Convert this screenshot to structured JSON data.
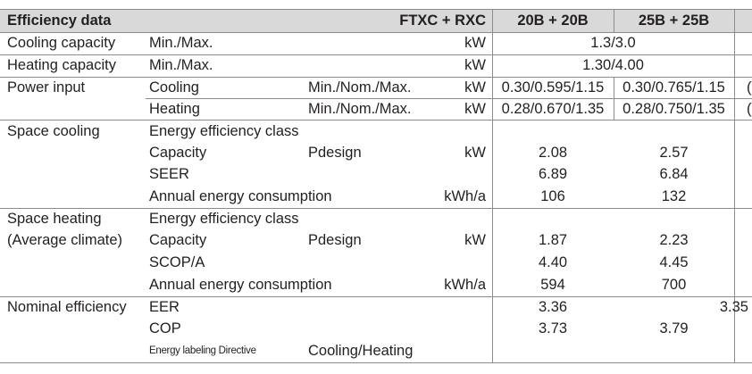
{
  "header": {
    "title": "Efficiency data",
    "model_label": "FTXC + RXC",
    "columns": [
      "20B + 20B",
      "25B + 25B"
    ]
  },
  "rows": {
    "cooling_capacity": {
      "label": "Cooling capacity",
      "param": "Min./Max.",
      "unit": "kW",
      "value_span": "1.3/3.0"
    },
    "heating_capacity": {
      "label": "Heating capacity",
      "param": "Min./Max.",
      "unit": "kW",
      "value_span": "1.30/4.00"
    },
    "power_input": {
      "label": "Power input",
      "cooling": {
        "sub": "Cooling",
        "param": "Min./Nom./Max.",
        "unit": "kW",
        "values": [
          "0.30/0.595/1.15",
          "0.30/0.765/1.15"
        ],
        "clipped": "("
      },
      "heating": {
        "sub": "Heating",
        "param": "Min./Nom./Max.",
        "unit": "kW",
        "values": [
          "0.28/0.670/1.35",
          "0.28/0.750/1.35"
        ],
        "clipped": "("
      }
    },
    "space_cooling": {
      "label": "Space cooling",
      "eec": {
        "sub": "Energy efficiency class"
      },
      "capacity": {
        "sub": "Capacity",
        "param": "Pdesign",
        "unit": "kW",
        "values": [
          "2.08",
          "2.57"
        ]
      },
      "seer": {
        "sub": "SEER",
        "values": [
          "6.89",
          "6.84"
        ]
      },
      "annual": {
        "sub": "Annual energy consumption",
        "unit": "kWh/a",
        "values": [
          "106",
          "132"
        ]
      }
    },
    "space_heating": {
      "label": "Space heating",
      "label2": "(Average climate)",
      "eec": {
        "sub": "Energy efficiency class"
      },
      "capacity": {
        "sub": "Capacity",
        "param": "Pdesign",
        "unit": "kW",
        "values": [
          "1.87",
          "2.23"
        ]
      },
      "scop": {
        "sub": "SCOP/A",
        "values": [
          "4.40",
          "4.45"
        ]
      },
      "annual": {
        "sub": "Annual energy consumption",
        "unit": "kWh/a",
        "values": [
          "594",
          "700"
        ]
      }
    },
    "nominal_efficiency": {
      "label": "Nominal efficiency",
      "eer": {
        "sub": "EER",
        "values": [
          "3.36",
          "3.35"
        ]
      },
      "cop": {
        "sub": "COP",
        "values": [
          "3.73",
          "3.79"
        ]
      },
      "directive": {
        "sub": "Energy labeling Directive",
        "param": "Cooling/Heating"
      }
    }
  },
  "colors": {
    "header_band": "#d9d9d9",
    "rule": "#8c8c8c",
    "text": "#231f20"
  }
}
